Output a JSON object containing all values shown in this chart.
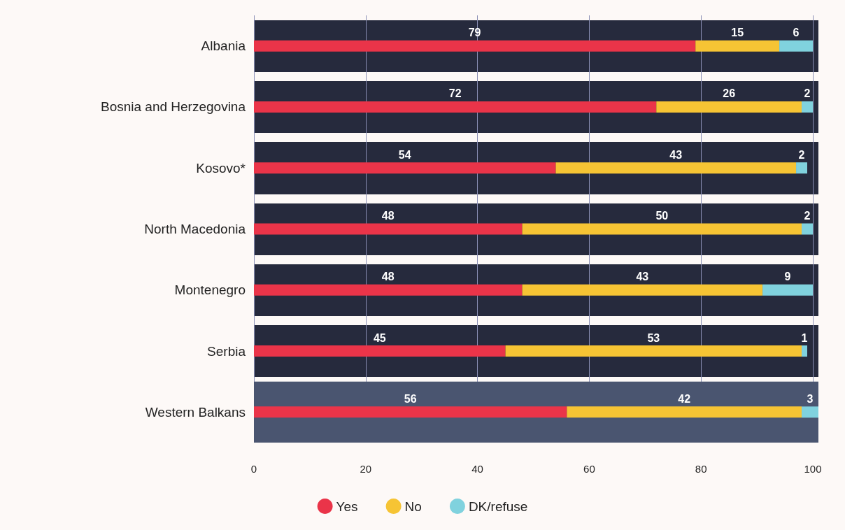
{
  "chart_data": {
    "type": "bar",
    "orientation": "horizontal",
    "stacked": true,
    "categories": [
      "Albania",
      "Bosnia and Herzegovina",
      "Kosovo*",
      "North Macedonia",
      "Montenegro",
      "Serbia",
      "Western Balkans"
    ],
    "series": [
      {
        "name": "Yes",
        "color": "#ea3449",
        "values": [
          79,
          72,
          54,
          48,
          48,
          45,
          56
        ]
      },
      {
        "name": "No",
        "color": "#f6c434",
        "values": [
          15,
          26,
          43,
          50,
          43,
          53,
          42
        ]
      },
      {
        "name": "DK/refuse",
        "color": "#80d2de",
        "values": [
          6,
          2,
          2,
          2,
          9,
          1,
          3
        ]
      }
    ],
    "xlim": [
      0,
      101
    ],
    "xticks": [
      0,
      20,
      40,
      60,
      80,
      100
    ],
    "bands": [
      {
        "axis": "y",
        "from": "Western Balkans",
        "to": "Western Balkans",
        "color": "#4a5570"
      }
    ],
    "data_labels": true,
    "grid": "x",
    "legend": "bottom"
  }
}
